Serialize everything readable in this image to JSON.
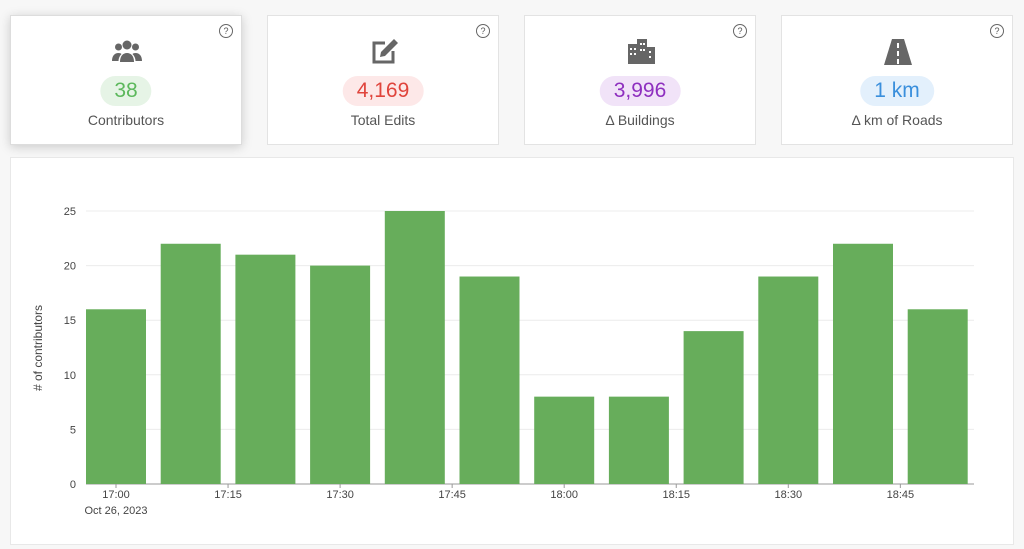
{
  "cards": [
    {
      "value": "38",
      "label": "Contributors",
      "color": "#5cb85c",
      "bg": "#e6f4e6",
      "help": "?"
    },
    {
      "value": "4,169",
      "label": "Total Edits",
      "color": "#e0443c",
      "bg": "#fde8e8",
      "help": "?"
    },
    {
      "value": "3,996",
      "label": "Δ Buildings",
      "color": "#8e2fbf",
      "bg": "#f1e3f8",
      "help": "?"
    },
    {
      "value": "1 km",
      "label": "Δ km of Roads",
      "color": "#3a8fdc",
      "bg": "#e3f0fc",
      "help": "?"
    }
  ],
  "chart_data": {
    "type": "bar",
    "ylabel": "# of contributors",
    "x": [
      "2023-10-26T17:00",
      "2023-10-26T17:10",
      "2023-10-26T17:20",
      "2023-10-26T17:30",
      "2023-10-26T17:40",
      "2023-10-26T17:50",
      "2023-10-26T18:00",
      "2023-10-26T18:10",
      "2023-10-26T18:20",
      "2023-10-26T18:30",
      "2023-10-26T18:40",
      "2023-10-26T18:50"
    ],
    "values": [
      16,
      22,
      21,
      20,
      25,
      19,
      8,
      8,
      14,
      19,
      22,
      16
    ],
    "color": "#67ad5b",
    "ylim": [
      0,
      25
    ],
    "yticks": [
      0,
      5,
      10,
      15,
      20,
      25
    ],
    "grid": true,
    "xticks": [
      {
        "value": "2023-10-26T17:00",
        "label": "17:00"
      },
      {
        "value": "2023-10-26T17:15",
        "label": "17:15"
      },
      {
        "value": "2023-10-26T17:30",
        "label": "17:30"
      },
      {
        "value": "2023-10-26T17:45",
        "label": "17:45"
      },
      {
        "value": "2023-10-26T18:00",
        "label": "18:00"
      },
      {
        "value": "2023-10-26T18:15",
        "label": "18:15"
      },
      {
        "value": "2023-10-26T18:30",
        "label": "18:30"
      },
      {
        "value": "2023-10-26T18:45",
        "label": "18:45"
      }
    ],
    "x_date_label": "Oct 26, 2023"
  }
}
